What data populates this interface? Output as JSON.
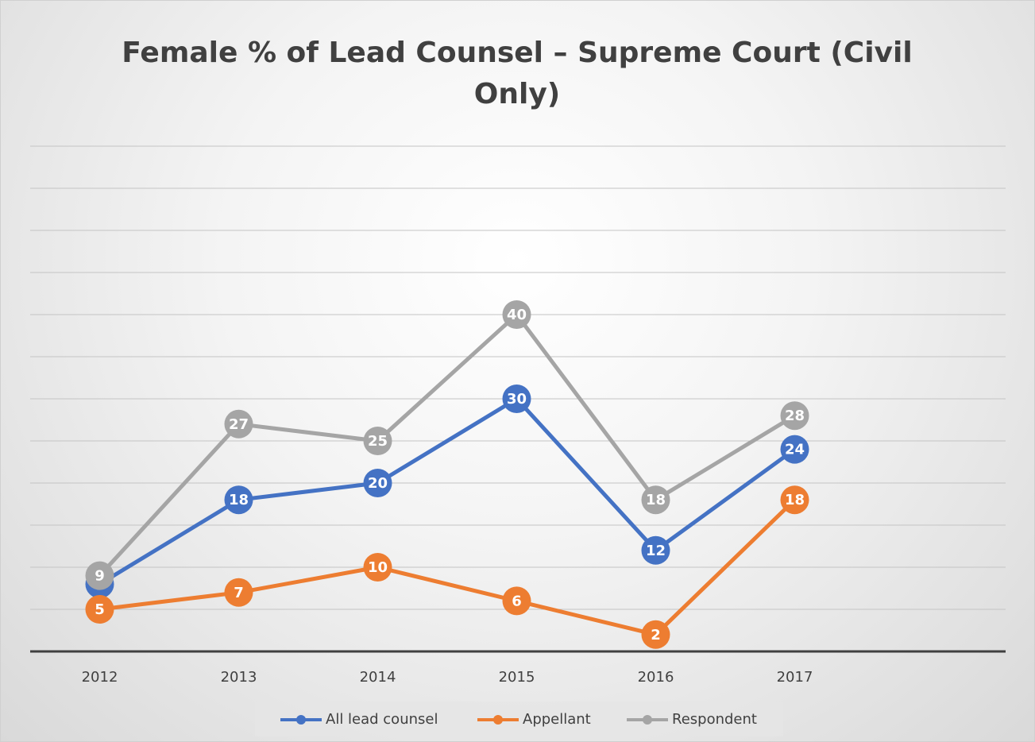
{
  "chart_data": {
    "type": "line",
    "title": "Female % of Lead Counsel – Supreme Court (Civil Only)",
    "categories": [
      "2012",
      "2013",
      "2014",
      "2015",
      "2016",
      "2017",
      null
    ],
    "series": [
      {
        "name": "All lead counsel",
        "color": "#4472c4",
        "values": [
          8,
          18,
          20,
          30,
          12,
          24,
          null
        ]
      },
      {
        "name": "Appellant",
        "color": "#ed7d31",
        "values": [
          5,
          7,
          10,
          6,
          2,
          18,
          null
        ]
      },
      {
        "name": "Respondent",
        "color": "#a5a5a5",
        "values": [
          9,
          27,
          25,
          40,
          18,
          28,
          null
        ]
      }
    ],
    "ylim": [
      0,
      60
    ],
    "yticks": [
      0,
      5,
      10,
      15,
      20,
      25,
      30,
      35,
      40,
      45,
      50,
      55,
      60
    ],
    "show_y_tick_labels": false,
    "grid": true,
    "data_labels": true,
    "legend": "bottom"
  }
}
